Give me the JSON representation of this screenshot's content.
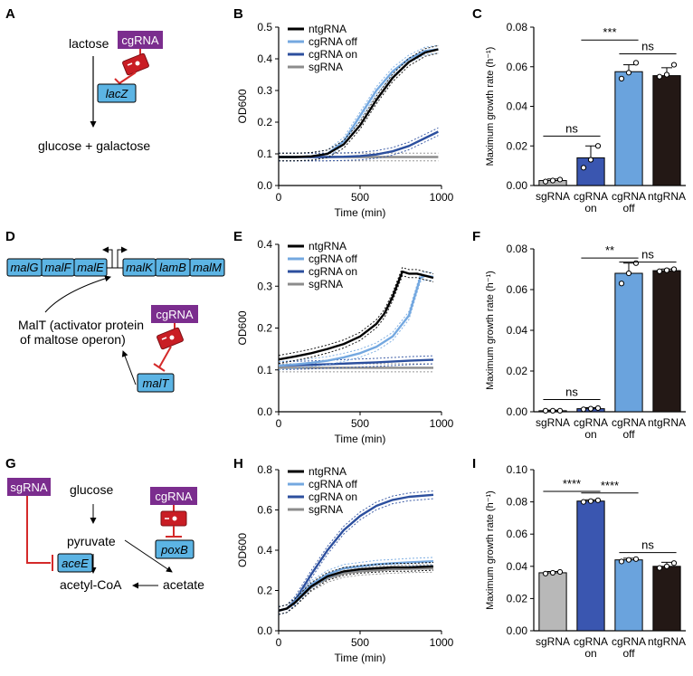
{
  "colors": {
    "ntgRNA": "#000000",
    "cgRNA_off": "#74a8e0",
    "cgRNA_on": "#2c4f9e",
    "sgRNA": "#8c8c8c",
    "bar_sg": "#b8b8b8",
    "bar_on": "#3a56b0",
    "bar_off": "#6aa3dd",
    "bar_nt": "#231815",
    "gene_box": "#5cb4e4",
    "cgRNA_box": "#7b2d8e",
    "inhibitor": "#d42a2a"
  },
  "panels": {
    "A": {
      "label": "A",
      "substrate": "lactose",
      "product": "glucose + galactose",
      "guide": "cgRNA",
      "gene": "lacZ"
    },
    "D": {
      "label": "D",
      "genes_left": [
        "malG",
        "malF",
        "malE"
      ],
      "genes_right": [
        "malK",
        "lamB",
        "malM"
      ],
      "activator_line1": "MalT (activator protein",
      "activator_line2": "of maltose operon)",
      "guide": "cgRNA",
      "gene": "malT"
    },
    "G": {
      "label": "G",
      "glucose": "glucose",
      "pyruvate": "pyruvate",
      "acetate": "acetate",
      "acetylcoa": "acetyl-CoA",
      "guide1": "sgRNA",
      "gene1": "aceE",
      "guide2": "cgRNA",
      "gene2": "poxB"
    }
  },
  "chart_data": [
    {
      "panel": "B",
      "type": "line",
      "xlabel": "Time (min)",
      "ylabel": "OD600",
      "xlim": [
        0,
        1000
      ],
      "ylim": [
        0,
        0.5
      ],
      "xticks": [
        "0",
        "500",
        "1000"
      ],
      "yticks": [
        "0.0",
        "0.1",
        "0.2",
        "0.3",
        "0.4",
        "0.5"
      ],
      "series": [
        {
          "name": "ntgRNA",
          "x": [
            0,
            100,
            200,
            300,
            400,
            500,
            600,
            700,
            800,
            900,
            980
          ],
          "y": [
            0.09,
            0.09,
            0.092,
            0.1,
            0.13,
            0.19,
            0.27,
            0.34,
            0.39,
            0.42,
            0.43
          ]
        },
        {
          "name": "cgRNA off",
          "x": [
            0,
            100,
            200,
            300,
            400,
            500,
            600,
            700,
            800,
            900,
            980
          ],
          "y": [
            0.09,
            0.09,
            0.092,
            0.1,
            0.14,
            0.22,
            0.3,
            0.36,
            0.4,
            0.425,
            0.43
          ]
        },
        {
          "name": "cgRNA on",
          "x": [
            0,
            100,
            200,
            300,
            400,
            500,
            600,
            700,
            800,
            900,
            980
          ],
          "y": [
            0.09,
            0.09,
            0.09,
            0.09,
            0.091,
            0.093,
            0.098,
            0.108,
            0.125,
            0.15,
            0.17
          ]
        },
        {
          "name": "sgRNA",
          "x": [
            0,
            100,
            200,
            300,
            400,
            500,
            600,
            700,
            800,
            900,
            980
          ],
          "y": [
            0.09,
            0.09,
            0.09,
            0.09,
            0.09,
            0.09,
            0.09,
            0.09,
            0.09,
            0.09,
            0.09
          ]
        }
      ]
    },
    {
      "panel": "C",
      "type": "bar",
      "ylabel": "Maximum growth rate (h⁻¹)",
      "ylim": [
        0,
        0.08
      ],
      "yticks": [
        "0.00",
        "0.02",
        "0.04",
        "0.06",
        "0.08"
      ],
      "categories": [
        [
          "sgRNA"
        ],
        [
          "cgRNA",
          "on"
        ],
        [
          "cgRNA",
          "off"
        ],
        [
          "ntgRNA"
        ]
      ],
      "values": [
        0.0025,
        0.014,
        0.0575,
        0.0555
      ],
      "errors": [
        0.0008,
        0.006,
        0.0035,
        0.004
      ],
      "points": [
        [
          0.002,
          0.0025,
          0.003
        ],
        [
          0.009,
          0.013,
          0.02
        ],
        [
          0.054,
          0.057,
          0.062
        ],
        [
          0.055,
          0.056,
          0.061
        ]
      ],
      "annotations": [
        {
          "from": 0,
          "to": 1,
          "text": "ns",
          "y": 0.025
        },
        {
          "from": 2,
          "to": 3,
          "text": "ns",
          "y": 0.0665
        },
        {
          "from": 1,
          "to": 2,
          "text": "***",
          "y": 0.0735
        }
      ]
    },
    {
      "panel": "E",
      "type": "line",
      "xlabel": "Time (min)",
      "ylabel": "OD600",
      "xlim": [
        0,
        1000
      ],
      "ylim": [
        0,
        0.4
      ],
      "xticks": [
        "0",
        "500",
        "1000"
      ],
      "yticks": [
        "0.0",
        "0.1",
        "0.2",
        "0.3",
        "0.4"
      ],
      "series": [
        {
          "name": "ntgRNA",
          "x": [
            0,
            100,
            200,
            300,
            400,
            500,
            600,
            650,
            700,
            760,
            800,
            850,
            900,
            950
          ],
          "y": [
            0.125,
            0.132,
            0.14,
            0.15,
            0.162,
            0.18,
            0.21,
            0.235,
            0.275,
            0.335,
            0.33,
            0.33,
            0.325,
            0.32
          ]
        },
        {
          "name": "cgRNA off",
          "x": [
            0,
            100,
            200,
            300,
            400,
            500,
            600,
            700,
            800,
            870,
            900,
            950
          ],
          "y": [
            0.11,
            0.113,
            0.117,
            0.122,
            0.13,
            0.14,
            0.155,
            0.18,
            0.23,
            0.32,
            0.325,
            0.322
          ]
        },
        {
          "name": "cgRNA on",
          "x": [
            0,
            200,
            400,
            600,
            800,
            950
          ],
          "y": [
            0.11,
            0.112,
            0.115,
            0.118,
            0.122,
            0.124
          ]
        },
        {
          "name": "sgRNA",
          "x": [
            0,
            950
          ],
          "y": [
            0.105,
            0.105
          ]
        }
      ]
    },
    {
      "panel": "F",
      "type": "bar",
      "ylabel": "Maximum growth rate (h⁻¹)",
      "ylim": [
        0,
        0.08
      ],
      "yticks": [
        "0.00",
        "0.02",
        "0.04",
        "0.06",
        "0.08"
      ],
      "categories": [
        [
          "sgRNA"
        ],
        [
          "cgRNA",
          "on"
        ],
        [
          "cgRNA",
          "off"
        ],
        [
          "ntgRNA"
        ]
      ],
      "values": [
        0.0005,
        0.0015,
        0.068,
        0.0693
      ],
      "errors": [
        0.0003,
        0.0005,
        0.005,
        0.0008
      ],
      "points": [
        [
          0.0005,
          0.0005,
          0.0005
        ],
        [
          0.0012,
          0.0015,
          0.0018
        ],
        [
          0.063,
          0.068,
          0.073
        ],
        [
          0.069,
          0.0695,
          0.07
        ]
      ],
      "annotations": [
        {
          "from": 0,
          "to": 1,
          "text": "ns",
          "y": 0.006
        },
        {
          "from": 2,
          "to": 3,
          "text": "ns",
          "y": 0.0735
        },
        {
          "from": 1,
          "to": 2,
          "text": "**",
          "y": 0.0755
        }
      ]
    },
    {
      "panel": "H",
      "type": "line",
      "xlabel": "Time (min)",
      "ylabel": "OD600",
      "xlim": [
        0,
        1000
      ],
      "ylim": [
        0,
        0.8
      ],
      "xticks": [
        "0",
        "500",
        "1000"
      ],
      "yticks": [
        "0.0",
        "0.2",
        "0.4",
        "0.6",
        "0.8"
      ],
      "series": [
        {
          "name": "ntgRNA",
          "x": [
            0,
            50,
            100,
            200,
            300,
            400,
            500,
            600,
            700,
            800,
            950
          ],
          "y": [
            0.1,
            0.11,
            0.14,
            0.22,
            0.27,
            0.295,
            0.305,
            0.31,
            0.315,
            0.315,
            0.32
          ]
        },
        {
          "name": "cgRNA off",
          "x": [
            0,
            50,
            100,
            200,
            300,
            400,
            500,
            600,
            700,
            800,
            950
          ],
          "y": [
            0.1,
            0.11,
            0.145,
            0.23,
            0.28,
            0.31,
            0.32,
            0.33,
            0.335,
            0.34,
            0.345
          ]
        },
        {
          "name": "cgRNA on",
          "x": [
            0,
            50,
            100,
            200,
            300,
            400,
            500,
            600,
            700,
            800,
            950
          ],
          "y": [
            0.1,
            0.11,
            0.15,
            0.28,
            0.4,
            0.5,
            0.57,
            0.62,
            0.65,
            0.665,
            0.675
          ]
        },
        {
          "name": "sgRNA",
          "x": [
            0,
            50,
            100,
            200,
            300,
            400,
            500,
            600,
            700,
            800,
            950
          ],
          "y": [
            0.1,
            0.11,
            0.14,
            0.215,
            0.26,
            0.285,
            0.295,
            0.3,
            0.305,
            0.308,
            0.31
          ]
        }
      ]
    },
    {
      "panel": "I",
      "type": "bar",
      "ylabel": "Maximum growth rate (h⁻¹)",
      "ylim": [
        0,
        0.1
      ],
      "yticks": [
        "0.00",
        "0.02",
        "0.04",
        "0.06",
        "0.08",
        "0.10"
      ],
      "categories": [
        [
          "sgRNA"
        ],
        [
          "cgRNA",
          "on"
        ],
        [
          "cgRNA",
          "off"
        ],
        [
          "ntgRNA"
        ]
      ],
      "values": [
        0.036,
        0.0805,
        0.044,
        0.04
      ],
      "errors": [
        0.0008,
        0.0008,
        0.001,
        0.0025
      ],
      "points": [
        [
          0.0355,
          0.036,
          0.0365
        ],
        [
          0.08,
          0.0805,
          0.081
        ],
        [
          0.043,
          0.044,
          0.0445
        ],
        [
          0.039,
          0.04,
          0.042
        ]
      ],
      "annotations": [
        {
          "from": 0,
          "to": 1,
          "text": "****",
          "y": 0.0865
        },
        {
          "from": 1,
          "to": 2,
          "text": "****",
          "y": 0.0855
        },
        {
          "from": 2,
          "to": 3,
          "text": "ns",
          "y": 0.0485
        }
      ]
    }
  ]
}
